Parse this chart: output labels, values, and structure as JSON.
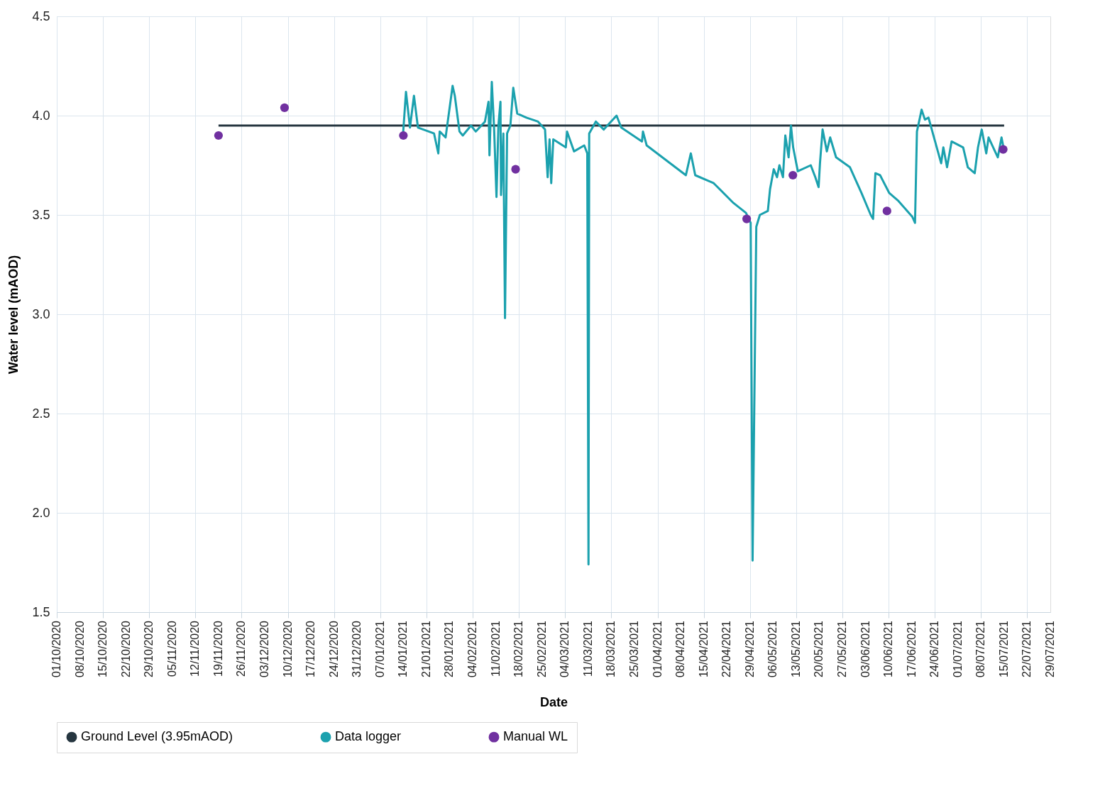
{
  "chart_data": {
    "type": "line",
    "xlabel": "Date",
    "ylabel": "Water level (mAOD)",
    "xlim": [
      "2020-10-01",
      "2021-07-29"
    ],
    "ylim": [
      1.5,
      4.5
    ],
    "yticks": [
      {
        "value": 1.5,
        "label": "1.5"
      },
      {
        "value": 2,
        "label": "2.0"
      },
      {
        "value": 2.5,
        "label": "2.5"
      },
      {
        "value": 3,
        "label": "3.0"
      },
      {
        "value": 3.5,
        "label": "3.5"
      },
      {
        "value": 4,
        "label": "4.0"
      },
      {
        "value": 4.5,
        "label": "4.5"
      }
    ],
    "xticks": [
      {
        "value": "2020-10-01",
        "label": "01/10/2020"
      },
      {
        "value": "2020-10-08",
        "label": "08/10/2020"
      },
      {
        "value": "2020-10-15",
        "label": "15/10/2020"
      },
      {
        "value": "2020-10-22",
        "label": "22/10/2020"
      },
      {
        "value": "2020-10-29",
        "label": "29/10/2020"
      },
      {
        "value": "2020-11-05",
        "label": "05/11/2020"
      },
      {
        "value": "2020-11-12",
        "label": "12/11/2020"
      },
      {
        "value": "2020-11-19",
        "label": "19/11/2020"
      },
      {
        "value": "2020-11-26",
        "label": "26/11/2020"
      },
      {
        "value": "2020-12-03",
        "label": "03/12/2020"
      },
      {
        "value": "2020-12-10",
        "label": "10/12/2020"
      },
      {
        "value": "2020-12-17",
        "label": "17/12/2020"
      },
      {
        "value": "2020-12-24",
        "label": "24/12/2020"
      },
      {
        "value": "2020-12-31",
        "label": "31/12/2020"
      },
      {
        "value": "2021-01-07",
        "label": "07/01/2021"
      },
      {
        "value": "2021-01-14",
        "label": "14/01/2021"
      },
      {
        "value": "2021-01-21",
        "label": "21/01/2021"
      },
      {
        "value": "2021-01-28",
        "label": "28/01/2021"
      },
      {
        "value": "2021-02-04",
        "label": "04/02/2021"
      },
      {
        "value": "2021-02-11",
        "label": "11/02/2021"
      },
      {
        "value": "2021-02-18",
        "label": "18/02/2021"
      },
      {
        "value": "2021-02-25",
        "label": "25/02/2021"
      },
      {
        "value": "2021-03-04",
        "label": "04/03/2021"
      },
      {
        "value": "2021-03-11",
        "label": "11/03/2021"
      },
      {
        "value": "2021-03-18",
        "label": "18/03/2021"
      },
      {
        "value": "2021-03-25",
        "label": "25/03/2021"
      },
      {
        "value": "2021-04-01",
        "label": "01/04/2021"
      },
      {
        "value": "2021-04-08",
        "label": "08/04/2021"
      },
      {
        "value": "2021-04-15",
        "label": "15/04/2021"
      },
      {
        "value": "2021-04-22",
        "label": "22/04/2021"
      },
      {
        "value": "2021-04-29",
        "label": "29/04/2021"
      },
      {
        "value": "2021-05-06",
        "label": "06/05/2021"
      },
      {
        "value": "2021-05-13",
        "label": "13/05/2021"
      },
      {
        "value": "2021-05-20",
        "label": "20/05/2021"
      },
      {
        "value": "2021-05-27",
        "label": "27/05/2021"
      },
      {
        "value": "2021-06-03",
        "label": "03/06/2021"
      },
      {
        "value": "2021-06-10",
        "label": "10/06/2021"
      },
      {
        "value": "2021-06-17",
        "label": "17/06/2021"
      },
      {
        "value": "2021-06-24",
        "label": "24/06/2021"
      },
      {
        "value": "2021-07-01",
        "label": "01/07/2021"
      },
      {
        "value": "2021-07-08",
        "label": "08/07/2021"
      },
      {
        "value": "2021-07-15",
        "label": "15/07/2021"
      },
      {
        "value": "2021-07-22",
        "label": "22/07/2021"
      },
      {
        "value": "2021-07-29",
        "label": "29/07/2021"
      }
    ],
    "grid": true,
    "legend": "bottom",
    "series": [
      {
        "name": "Ground Level (3.95mAOD)",
        "type": "line",
        "color": "#263640",
        "x": [
          "2020-11-19",
          "2021-07-15"
        ],
        "values": [
          3.95,
          3.95
        ]
      },
      {
        "name": "Data logger",
        "type": "line",
        "color": "#1ba1ae",
        "x": [
          "2021-01-13T22:00",
          "2021-01-14T19:00",
          "2021-01-16T00:00",
          "2021-01-17T05:00",
          "2021-01-18T10:00",
          "2021-01-23T07:00",
          "2021-01-24T14:00",
          "2021-01-25T00:00",
          "2021-01-26T19:00",
          "2021-01-28T22:00",
          "2021-01-29T14:00",
          "2021-01-31T00:00",
          "2021-02-01T00:00",
          "2021-02-03T12:00",
          "2021-02-04T22:00",
          "2021-02-07T17:00",
          "2021-02-08T19:00",
          "2021-02-09T02:00",
          "2021-02-09T19:00",
          "2021-02-10T12:00",
          "2021-02-11T05:00",
          "2021-02-11T19:00",
          "2021-02-12T10:00",
          "2021-02-12T14:00",
          "2021-02-13T07:00",
          "2021-02-13T19:00",
          "2021-02-14T10:00",
          "2021-02-15T10:00",
          "2021-02-16T07:00",
          "2021-02-17T12:00",
          "2021-02-20T07:00",
          "2021-02-23T19:00",
          "2021-02-25T22:00",
          "2021-02-26T17:00",
          "2021-02-27T07:00",
          "2021-02-27T19:00",
          "2021-02-28T10:00",
          "2021-03-04T05:00",
          "2021-03-04T14:00",
          "2021-03-06T17:00",
          "2021-03-09T19:00",
          "2021-03-10T17:00",
          "2021-03-11T02:00",
          "2021-03-11T07:00",
          "2021-03-13T07:00",
          "2021-03-15T17:00",
          "2021-03-19T14:00",
          "2021-03-21T00:00",
          "2021-03-27T07:00",
          "2021-03-27T14:00",
          "2021-03-28T17:00",
          "2021-04-09T14:00",
          "2021-04-11T02:00",
          "2021-04-12T10:00",
          "2021-04-18T00:00",
          "2021-04-24T00:00",
          "2021-04-27T19:00",
          "2021-04-29T05:00",
          "2021-04-29T19:00",
          "2021-04-30T22:00",
          "2021-05-02T00:00",
          "2021-05-04T10:00",
          "2021-05-05T02:00",
          "2021-05-06T05:00",
          "2021-05-07T05:00",
          "2021-05-07T22:00",
          "2021-05-09T00:00",
          "2021-05-09T17:00",
          "2021-05-10T17:00",
          "2021-05-11T10:00",
          "2021-05-12T02:00",
          "2021-05-13T12:00",
          "2021-05-17T10:00",
          "2021-05-18T19:00",
          "2021-05-19T19:00",
          "2021-05-20T05:00",
          "2021-05-21T00:00",
          "2021-05-22T07:00",
          "2021-05-23T07:00",
          "2021-05-25T02:00",
          "2021-05-29T07:00",
          "2021-06-01T19:00",
          "2021-06-04T14:00",
          "2021-06-05T07:00",
          "2021-06-06T00:00",
          "2021-06-07T10:00",
          "2021-06-10T05:00",
          "2021-06-13T00:00",
          "2021-06-17T05:00",
          "2021-06-18T00:00",
          "2021-06-18T14:00",
          "2021-06-20T00:00",
          "2021-06-21T00:00",
          "2021-06-22T02:00",
          "2021-06-24T22:00",
          "2021-06-25T22:00",
          "2021-06-26T14:00",
          "2021-06-27T17:00",
          "2021-06-29T02:00",
          "2021-07-02T14:00",
          "2021-07-04T00:00",
          "2021-07-06T02:00",
          "2021-07-07T02:00",
          "2021-07-08T05:00",
          "2021-07-09T14:00",
          "2021-07-10T07:00",
          "2021-07-13T02:00",
          "2021-07-14T05:00",
          "2021-07-14T19:00"
        ],
        "values": [
          3.91,
          4.12,
          3.94,
          4.1,
          3.94,
          3.91,
          3.81,
          3.92,
          3.89,
          4.15,
          4.1,
          3.92,
          3.9,
          3.95,
          3.92,
          3.97,
          4.07,
          3.8,
          4.17,
          3.93,
          3.59,
          3.95,
          4.07,
          3.6,
          3.91,
          2.98,
          3.91,
          3.95,
          4.14,
          4.01,
          3.99,
          3.97,
          3.93,
          3.69,
          3.88,
          3.66,
          3.88,
          3.84,
          3.92,
          3.82,
          3.85,
          3.81,
          1.74,
          3.91,
          3.97,
          3.93,
          4.0,
          3.94,
          3.87,
          3.92,
          3.85,
          3.7,
          3.81,
          3.7,
          3.66,
          3.56,
          3.51,
          3.46,
          1.76,
          3.44,
          3.5,
          3.52,
          3.63,
          3.73,
          3.69,
          3.75,
          3.69,
          3.9,
          3.79,
          3.95,
          3.84,
          3.72,
          3.75,
          3.69,
          3.64,
          3.76,
          3.93,
          3.82,
          3.89,
          3.79,
          3.74,
          3.61,
          3.5,
          3.48,
          3.71,
          3.7,
          3.61,
          3.57,
          3.49,
          3.46,
          3.92,
          4.03,
          3.98,
          3.99,
          3.82,
          3.76,
          3.84,
          3.74,
          3.87,
          3.84,
          3.74,
          3.71,
          3.84,
          3.93,
          3.81,
          3.89,
          3.79,
          3.89,
          3.84
        ]
      },
      {
        "name": "Manual WL",
        "type": "scatter",
        "color": "#7030a0",
        "marker": "circle",
        "x": [
          "2020-11-19",
          "2020-12-09",
          "2021-01-14",
          "2021-02-17",
          "2021-04-28",
          "2021-05-12",
          "2021-06-09T12:00",
          "2021-07-14T17:00"
        ],
        "values": [
          3.9,
          4.04,
          3.9,
          3.73,
          3.48,
          3.7,
          3.52,
          3.83
        ]
      }
    ]
  }
}
